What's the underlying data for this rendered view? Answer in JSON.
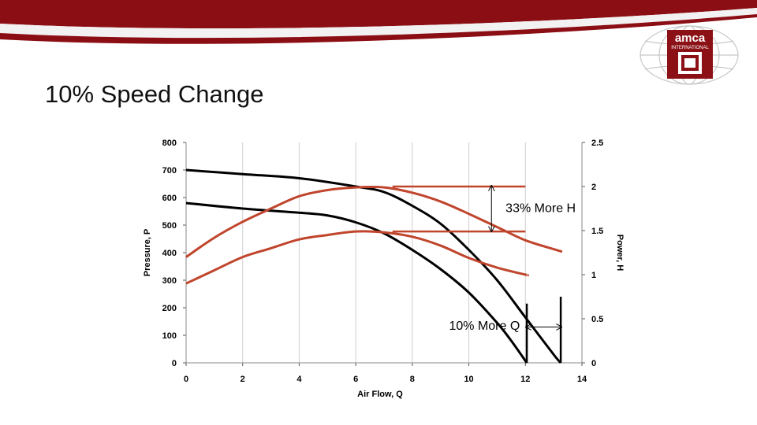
{
  "slide": {
    "title": "10% Speed Change"
  },
  "logo": {
    "text": "amca",
    "subtext": "INTERNATIONAL",
    "colors": {
      "primary": "#8b1116",
      "globe": "#c8c8c8"
    }
  },
  "colors": {
    "banner": "#8b0e14",
    "banner_stripe": "#f2f2f2",
    "pressure_curve": "#000000",
    "power_curve": "#c0452c",
    "grid": "#cfcfcf"
  },
  "chart_data": {
    "type": "line",
    "xlabel": "Air Flow, Q",
    "ylabel": "Pressure, P",
    "y2label": "Power, H",
    "xlim": [
      0,
      14
    ],
    "ylim": [
      0,
      800
    ],
    "y2lim": [
      0,
      2.5
    ],
    "x_ticks": [
      "0",
      "2",
      "4",
      "6",
      "8",
      "10",
      "12",
      "14"
    ],
    "y_ticks": [
      "0",
      "100",
      "200",
      "300",
      "400",
      "500",
      "600",
      "700",
      "800"
    ],
    "y2_ticks": [
      "0",
      "0.5",
      "1",
      "1.5",
      "2",
      "2.5"
    ],
    "grid": "vertical",
    "series": [
      {
        "axis": "left",
        "values": [
          [
            0,
            700
          ],
          [
            2,
            685
          ],
          [
            4,
            670
          ],
          [
            6,
            640
          ],
          [
            7,
            620
          ],
          [
            8,
            570
          ],
          [
            9,
            505
          ],
          [
            10,
            410
          ],
          [
            11,
            300
          ],
          [
            12,
            165
          ],
          [
            13,
            30
          ],
          [
            13.25,
            0
          ]
        ]
      },
      {
        "axis": "left",
        "values": [
          [
            0,
            580
          ],
          [
            2,
            560
          ],
          [
            4,
            545
          ],
          [
            5,
            535
          ],
          [
            6,
            510
          ],
          [
            7,
            470
          ],
          [
            8,
            410
          ],
          [
            9,
            340
          ],
          [
            10,
            255
          ],
          [
            11,
            145
          ],
          [
            11.5,
            80
          ],
          [
            12.05,
            0
          ]
        ]
      },
      {
        "axis": "right",
        "values": [
          [
            0,
            1.2
          ],
          [
            1,
            1.42
          ],
          [
            2,
            1.6
          ],
          [
            3,
            1.75
          ],
          [
            4,
            1.89
          ],
          [
            5,
            1.96
          ],
          [
            6,
            1.99
          ],
          [
            7,
            1.99
          ],
          [
            8,
            1.93
          ],
          [
            9,
            1.83
          ],
          [
            10,
            1.69
          ],
          [
            11,
            1.54
          ],
          [
            12,
            1.39
          ],
          [
            13,
            1.29
          ],
          [
            13.3,
            1.26
          ]
        ]
      },
      {
        "axis": "right",
        "values": [
          [
            0,
            0.9
          ],
          [
            1,
            1.05
          ],
          [
            2,
            1.2
          ],
          [
            3,
            1.3
          ],
          [
            4,
            1.4
          ],
          [
            5,
            1.45
          ],
          [
            6,
            1.49
          ],
          [
            7,
            1.48
          ],
          [
            8,
            1.43
          ],
          [
            9,
            1.33
          ],
          [
            10,
            1.19
          ],
          [
            11,
            1.08
          ],
          [
            12,
            1.0
          ],
          [
            12.05,
            1.0
          ]
        ]
      }
    ],
    "annotations": [
      {
        "text": "33% More H",
        "type": "vertical-arrow",
        "x": 10.8,
        "y2_from": 1.5,
        "y2_to": 2.0,
        "text_x": 11.3,
        "text_y": 547
      },
      {
        "text": "10% More Q",
        "type": "horizontal-arrow",
        "x_from": 12.05,
        "x_to": 13.25,
        "y": 130,
        "text_x": 9.3,
        "text_y": 120
      }
    ],
    "reference_lines": [
      {
        "axis": "right",
        "y2": 2.0,
        "x_from": 7.3,
        "x_to": 12
      },
      {
        "axis": "right",
        "y2": 1.49,
        "x_from": 7.3,
        "x_to": 12
      },
      {
        "axis": "left",
        "y": 0,
        "x_from": 12.05,
        "x_to": 12.05,
        "y_to": 215
      },
      {
        "axis": "left",
        "y": 0,
        "x_from": 13.25,
        "x_to": 13.25,
        "y_to": 240
      }
    ]
  }
}
